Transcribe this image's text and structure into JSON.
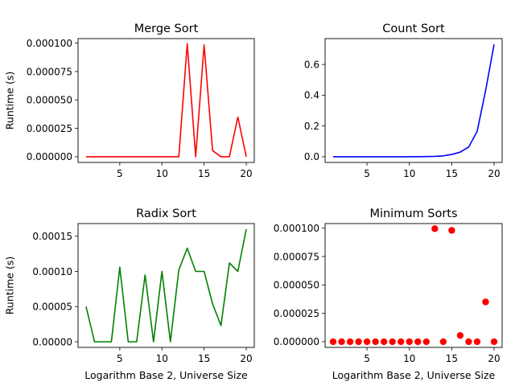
{
  "chart_data": [
    {
      "type": "line",
      "title": "Merge Sort",
      "xlabel": "",
      "ylabel": "Runtime (s)",
      "color": "#ff0000",
      "xlim": [
        0.05,
        20.95
      ],
      "ylim": [
        -5e-06,
        0.000104
      ],
      "xticks": [
        5,
        10,
        15,
        20
      ],
      "xtick_labels": [
        "5",
        "10",
        "15",
        "20"
      ],
      "yticks": [
        0,
        2.5e-05,
        5e-05,
        7.5e-05,
        0.0001
      ],
      "ytick_labels": [
        "0.000000",
        "0.000025",
        "0.000050",
        "0.000075",
        "0.000100"
      ],
      "x": [
        1,
        2,
        3,
        4,
        5,
        6,
        7,
        8,
        9,
        10,
        11,
        12,
        13,
        14,
        15,
        16,
        17,
        18,
        19,
        20
      ],
      "y": [
        0,
        0,
        0,
        0,
        0,
        0,
        0,
        0,
        0,
        0,
        0,
        0,
        9.95e-05,
        0,
        9.85e-05,
        5.5e-06,
        0,
        0,
        3.5e-05,
        0
      ]
    },
    {
      "type": "line",
      "title": "Count Sort",
      "xlabel": "",
      "ylabel": "",
      "color": "#0000ff",
      "xlim": [
        0.05,
        20.95
      ],
      "ylim": [
        -0.037,
        0.768
      ],
      "xticks": [
        5,
        10,
        15,
        20
      ],
      "xtick_labels": [
        "5",
        "10",
        "15",
        "20"
      ],
      "yticks": [
        0,
        0.2,
        0.4,
        0.6
      ],
      "ytick_labels": [
        "0.0",
        "0.2",
        "0.4",
        "0.6"
      ],
      "x": [
        1,
        2,
        3,
        4,
        5,
        6,
        7,
        8,
        9,
        10,
        11,
        12,
        13,
        14,
        15,
        16,
        17,
        18,
        19,
        20
      ],
      "y": [
        0,
        0,
        0,
        0,
        0,
        0,
        0,
        0,
        0,
        0,
        0.0005,
        0.001,
        0.0025,
        0.006,
        0.015,
        0.03,
        0.063,
        0.165,
        0.43,
        0.73
      ]
    },
    {
      "type": "line",
      "title": "Radix Sort",
      "xlabel": "Logarithm Base 2, Universe Size",
      "ylabel": "Runtime (s)",
      "color": "#008000",
      "xlim": [
        0.05,
        20.95
      ],
      "ylim": [
        -8e-06,
        0.000168
      ],
      "xticks": [
        5,
        10,
        15,
        20
      ],
      "xtick_labels": [
        "5",
        "10",
        "15",
        "20"
      ],
      "yticks": [
        0,
        5e-05,
        0.0001,
        0.00015
      ],
      "ytick_labels": [
        "0.00000",
        "0.00005",
        "0.00010",
        "0.00015"
      ],
      "x": [
        1,
        2,
        3,
        4,
        5,
        6,
        7,
        8,
        9,
        10,
        11,
        12,
        13,
        14,
        15,
        16,
        17,
        18,
        19,
        20
      ],
      "y": [
        5e-05,
        0,
        0,
        0,
        0.000106,
        0,
        0,
        9.5e-05,
        0,
        0.0001,
        0,
        0.000102,
        0.000133,
        0.0001,
        0.0001,
        5.4e-05,
        2.3e-05,
        0.000112,
        0.0001,
        0.00016
      ]
    },
    {
      "type": "scatter",
      "title": "Minimum Sorts",
      "xlabel": "Logarithm Base 2, Universe Size",
      "ylabel": "",
      "color": "#ff0000",
      "xlim": [
        0.05,
        20.95
      ],
      "ylim": [
        -5e-06,
        0.000104
      ],
      "xticks": [
        5,
        10,
        15,
        20
      ],
      "xtick_labels": [
        "5",
        "10",
        "15",
        "20"
      ],
      "yticks": [
        0,
        2.5e-05,
        5e-05,
        7.5e-05,
        0.0001
      ],
      "ytick_labels": [
        "0.000000",
        "0.000025",
        "0.000050",
        "0.000075",
        "0.000100"
      ],
      "x": [
        1,
        2,
        3,
        4,
        5,
        6,
        7,
        8,
        9,
        10,
        11,
        12,
        13,
        14,
        15,
        16,
        17,
        18,
        19,
        20
      ],
      "y": [
        0,
        0,
        0,
        0,
        0,
        0,
        0,
        0,
        0,
        0,
        0,
        0,
        9.95e-05,
        0,
        9.8e-05,
        5.5e-06,
        0,
        0,
        3.5e-05,
        0
      ]
    }
  ]
}
